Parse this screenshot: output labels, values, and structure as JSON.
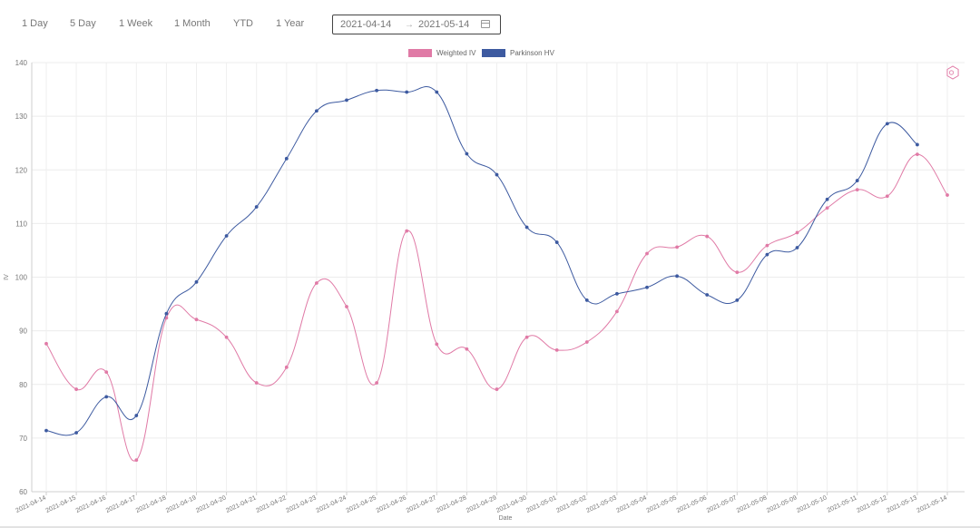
{
  "toolbar": {
    "ranges": [
      "1 Day",
      "5 Day",
      "1 Week",
      "1 Month",
      "YTD",
      "1 Year"
    ],
    "date_from": "2021-04-14",
    "date_to": "2021-05-14",
    "separator": "→"
  },
  "chart_data": {
    "type": "line",
    "xlabel": "Date",
    "ylabel": "IV",
    "ylim": [
      60,
      140
    ],
    "yticks": [
      60,
      70,
      80,
      90,
      100,
      110,
      120,
      130,
      140
    ],
    "grid": true,
    "legend": "top-center",
    "smooth": true,
    "categories": [
      "2021-04-14",
      "2021-04-15",
      "2021-04-16",
      "2021-04-17",
      "2021-04-18",
      "2021-04-19",
      "2021-04-20",
      "2021-04-21",
      "2021-04-22",
      "2021-04-23",
      "2021-04-24",
      "2021-04-25",
      "2021-04-26",
      "2021-04-27",
      "2021-04-28",
      "2021-04-29",
      "2021-04-30",
      "2021-05-01",
      "2021-05-02",
      "2021-05-03",
      "2021-05-04",
      "2021-05-05",
      "2021-05-06",
      "2021-05-07",
      "2021-05-08",
      "2021-05-09",
      "2021-05-10",
      "2021-05-11",
      "2021-05-12",
      "2021-05-13",
      "2021-05-14"
    ],
    "series": [
      {
        "name": "Weighted IV",
        "color": "#e07aa6",
        "values": [
          87.6,
          79.1,
          82.3,
          65.9,
          92.4,
          92.1,
          88.8,
          80.3,
          83.2,
          98.9,
          94.5,
          80.3,
          108.6,
          87.5,
          86.6,
          79.1,
          88.8,
          86.4,
          87.9,
          93.6,
          104.4,
          105.6,
          107.6,
          100.9,
          105.9,
          108.3,
          112.9,
          116.3,
          115.1,
          122.9,
          115.3
        ]
      },
      {
        "name": "Parkinson HV",
        "color": "#3d5aa0",
        "values": [
          71.4,
          71.0,
          77.7,
          74.2,
          93.2,
          99.1,
          107.7,
          113.1,
          122.1,
          131.0,
          133.0,
          134.8,
          134.5,
          134.5,
          123.0,
          119.1,
          109.3,
          106.5,
          95.7,
          96.9,
          98.1,
          100.2,
          96.7,
          95.7,
          104.2,
          105.5,
          114.5,
          118.0,
          128.6,
          124.7,
          null
        ]
      }
    ]
  }
}
